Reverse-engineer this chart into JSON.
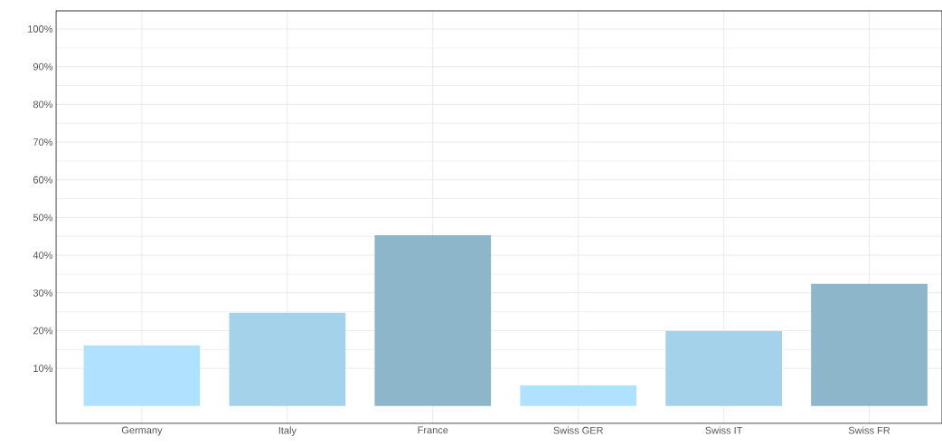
{
  "chart_data": {
    "type": "bar",
    "categories": [
      "Germany",
      "Italy",
      "France",
      "Swiss GER",
      "Swiss IT",
      "Swiss FR"
    ],
    "values": [
      16.1,
      24.7,
      45.3,
      5.5,
      19.9,
      32.4
    ],
    "colors": [
      "#b0e2ff",
      "#a3d2ea",
      "#8db6cb",
      "#b0e2ff",
      "#a3d2ea",
      "#8db6cb"
    ],
    "ylim": [
      -4.6,
      104.8
    ],
    "yticks": [
      {
        "value": 10,
        "label": "10%"
      },
      {
        "value": 20,
        "label": "20%"
      },
      {
        "value": 30,
        "label": "30%"
      },
      {
        "value": 40,
        "label": "40%"
      },
      {
        "value": 50,
        "label": "50%"
      },
      {
        "value": 60,
        "label": "60%"
      },
      {
        "value": 70,
        "label": "70%"
      },
      {
        "value": 80,
        "label": "80%"
      },
      {
        "value": 90,
        "label": "90%"
      },
      {
        "value": 100,
        "label": "100%"
      }
    ],
    "grid": true
  }
}
